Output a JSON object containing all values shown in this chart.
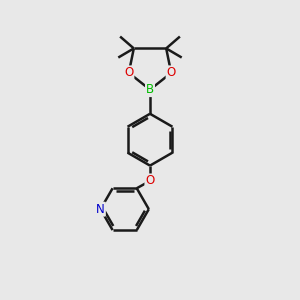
{
  "bg_color": "#e8e8e8",
  "bond_color": "#1a1a1a",
  "B_color": "#00bb00",
  "O_color": "#dd0000",
  "N_color": "#0000cc",
  "line_width": 1.8,
  "figsize": [
    3.0,
    3.0
  ],
  "dpi": 100,
  "xlim": [
    0,
    10
  ],
  "ylim": [
    0,
    10
  ]
}
